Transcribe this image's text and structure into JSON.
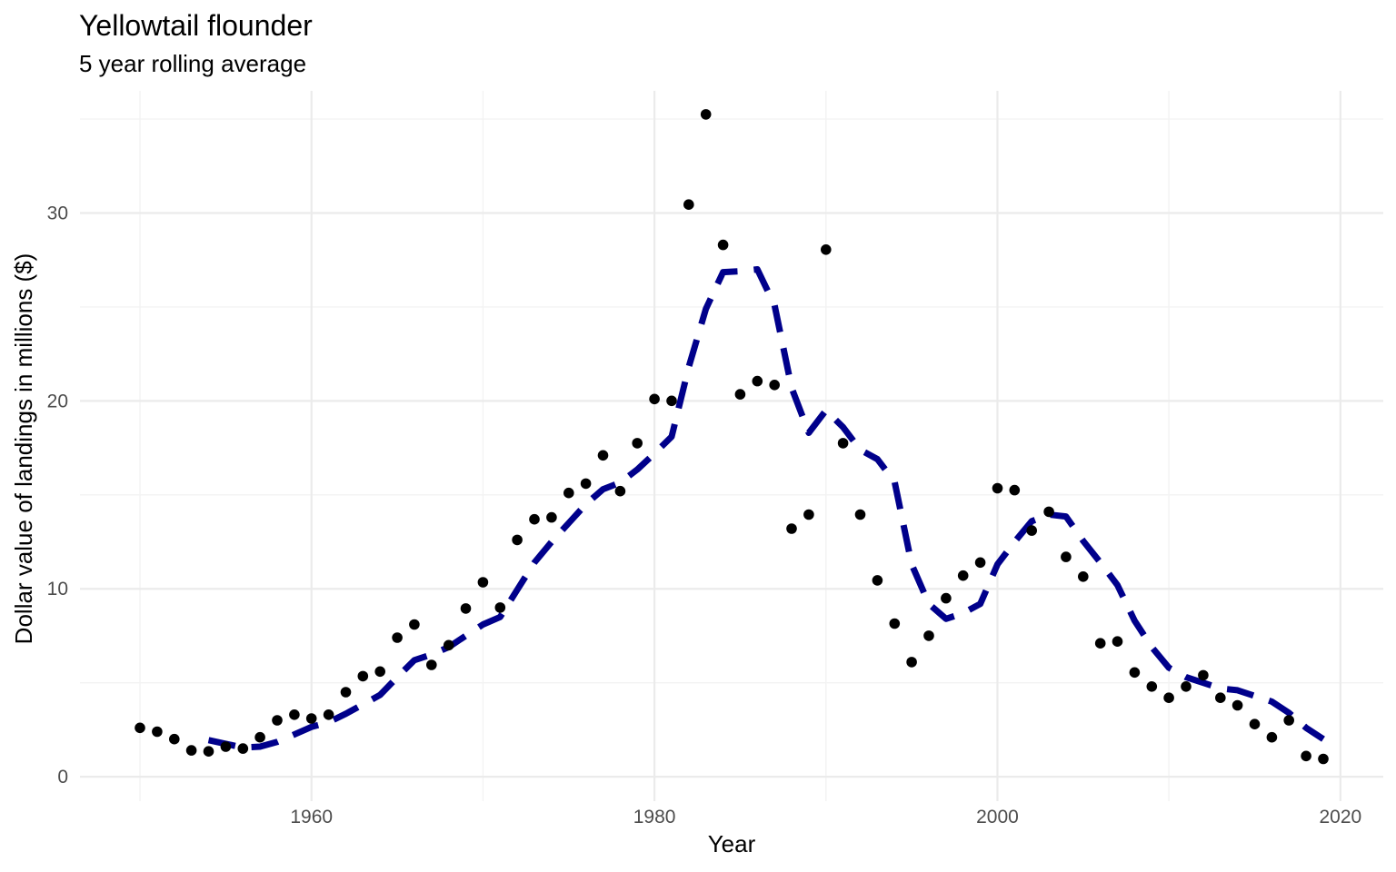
{
  "chart_data": {
    "type": "scatter",
    "title": "Yellowtail flounder",
    "subtitle": "5 year rolling average",
    "xlabel": "Year",
    "ylabel": "Dollar value of landings in millions ($)",
    "xlim": [
      1946.5,
      2022.5
    ],
    "ylim": [
      -1.3,
      36.5
    ],
    "x_ticks": [
      1960,
      1980,
      2000,
      2020
    ],
    "y_ticks": [
      0,
      10,
      20,
      30
    ],
    "grid": true,
    "legend": "none",
    "colors": {
      "points": "#000000",
      "line": "#00008b"
    },
    "series": [
      {
        "kind": "points",
        "x": [
          1950,
          1951,
          1952,
          1953,
          1954,
          1955,
          1956,
          1957,
          1958,
          1959,
          1960,
          1961,
          1962,
          1963,
          1964,
          1965,
          1966,
          1967,
          1968,
          1969,
          1970,
          1971,
          1972,
          1973,
          1974,
          1975,
          1976,
          1977,
          1978,
          1979,
          1980,
          1981,
          1982,
          1983,
          1984,
          1985,
          1986,
          1987,
          1988,
          1989,
          1990,
          1991,
          1992,
          1993,
          1994,
          1995,
          1996,
          1997,
          1998,
          1999,
          2000,
          2001,
          2002,
          2003,
          2004,
          2005,
          2006,
          2007,
          2008,
          2009,
          2010,
          2011,
          2012,
          2013,
          2014,
          2015,
          2016,
          2017,
          2018,
          2019
        ],
        "y": [
          2.6,
          2.4,
          2.0,
          1.4,
          1.35,
          1.6,
          1.5,
          2.1,
          3.0,
          3.3,
          3.1,
          3.3,
          4.5,
          5.35,
          5.6,
          7.4,
          8.1,
          5.95,
          7.0,
          8.95,
          10.35,
          9.0,
          12.6,
          13.7,
          13.8,
          15.1,
          15.6,
          17.1,
          15.2,
          17.75,
          20.1,
          20.0,
          30.45,
          35.25,
          28.3,
          20.35,
          21.05,
          20.85,
          13.2,
          13.95,
          28.05,
          17.75,
          13.95,
          10.45,
          8.15,
          6.1,
          7.5,
          9.5,
          10.7,
          11.4,
          15.35,
          15.25,
          13.1,
          14.1,
          11.7,
          10.65,
          7.1,
          7.2,
          5.55,
          4.8,
          4.2,
          4.8,
          5.4,
          4.2,
          3.8,
          2.8,
          2.1,
          3.0,
          1.1,
          0.95
        ]
      },
      {
        "kind": "line",
        "style": "dashed",
        "x": [
          1954,
          1955,
          1956,
          1957,
          1958,
          1959,
          1960,
          1961,
          1962,
          1963,
          1964,
          1965,
          1966,
          1967,
          1968,
          1969,
          1970,
          1971,
          1972,
          1973,
          1974,
          1975,
          1976,
          1977,
          1978,
          1979,
          1980,
          1981,
          1982,
          1983,
          1984,
          1985,
          1986,
          1987,
          1988,
          1989,
          1990,
          1991,
          1992,
          1993,
          1994,
          1995,
          1996,
          1997,
          1998,
          1999,
          2000,
          2001,
          2002,
          2003,
          2004,
          2005,
          2006,
          2007,
          2008,
          2009,
          2010,
          2011,
          2012,
          2013,
          2014,
          2015,
          2016,
          2017,
          2018,
          2019
        ],
        "y": [
          1.95,
          1.75,
          1.55,
          1.6,
          1.85,
          2.25,
          2.65,
          2.9,
          3.35,
          3.85,
          4.35,
          5.3,
          6.2,
          6.5,
          6.9,
          7.5,
          8.1,
          8.5,
          9.95,
          11.4,
          12.5,
          13.5,
          14.5,
          15.3,
          15.65,
          16.35,
          17.2,
          18.1,
          21.8,
          24.9,
          26.85,
          26.9,
          27.0,
          25.1,
          20.7,
          18.3,
          19.5,
          18.6,
          17.4,
          16.9,
          15.7,
          11.3,
          9.2,
          8.4,
          8.7,
          9.2,
          11.3,
          12.5,
          13.6,
          13.95,
          13.85,
          12.55,
          11.4,
          10.2,
          8.3,
          6.9,
          5.8,
          5.3,
          5.0,
          4.7,
          4.6,
          4.3,
          4.0,
          3.4,
          2.6,
          2.0
        ]
      }
    ]
  }
}
